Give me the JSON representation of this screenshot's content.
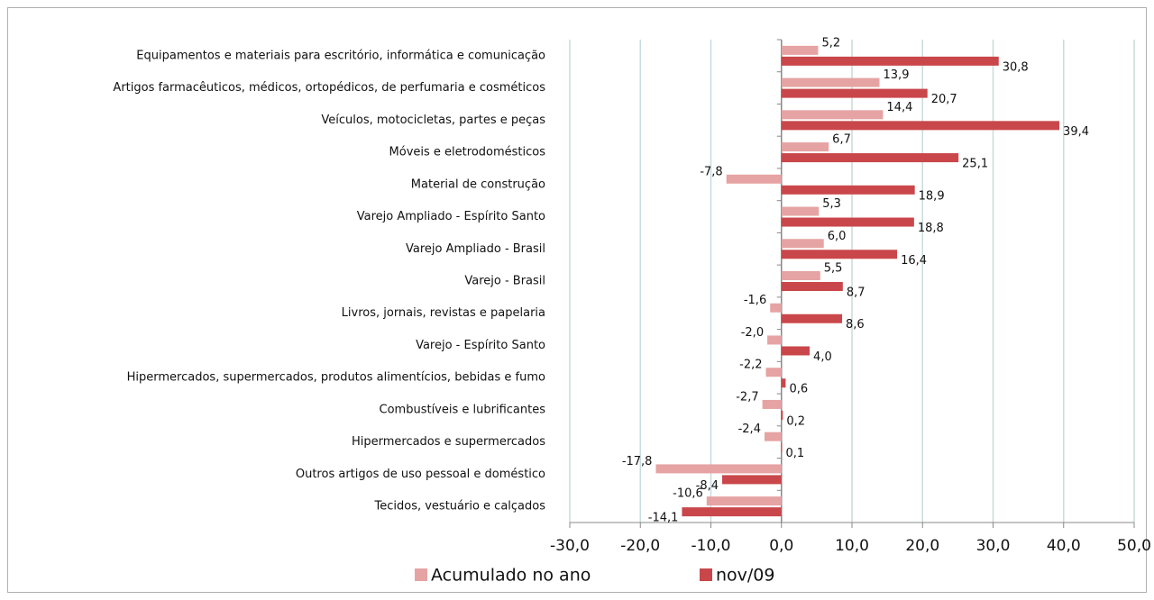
{
  "chart_data": {
    "type": "hbar",
    "categories": [
      "Equipamentos e materiais para escritório, informática e comunicação",
      "Artigos farmacêuticos, médicos, ortopédicos, de perfumaria e cosméticos",
      "Veículos, motocicletas, partes e peças",
      "Móveis e eletrodomésticos",
      "Material de construção",
      "Varejo Ampliado - Espírito Santo",
      "Varejo Ampliado - Brasil",
      "Varejo - Brasil",
      "Livros, jornais, revistas e papelaria",
      "Varejo - Espírito Santo",
      "Hipermercados, supermercados, produtos alimentícios, bebidas e fumo",
      "Combustíveis e lubrificantes",
      "Hipermercados e supermercados",
      "Outros artigos de uso pessoal e doméstico",
      "Tecidos, vestuário e calçados"
    ],
    "series": [
      {
        "name": "Acumulado no ano",
        "color": "#e6a3a3",
        "values": [
          5.2,
          13.9,
          14.4,
          6.7,
          -7.8,
          5.3,
          6.0,
          5.5,
          -1.6,
          -2.0,
          -2.2,
          -2.7,
          -2.4,
          -17.8,
          -10.6
        ],
        "value_labels": [
          "5,2",
          "13,9",
          "14,4",
          "6,7",
          "-7,8",
          "5,3",
          "6,0",
          "5,5",
          "-1,6",
          "-2,0",
          "-2,2",
          "-2,7",
          "-2,4",
          "-17,8",
          "-10,6"
        ]
      },
      {
        "name": "nov/09",
        "color": "#c9474a",
        "values": [
          30.8,
          20.7,
          39.4,
          25.1,
          18.9,
          18.8,
          16.4,
          8.7,
          8.6,
          4.0,
          0.6,
          0.2,
          0.1,
          -8.4,
          -14.1
        ],
        "value_labels": [
          "30,8",
          "20,7",
          "39,4",
          "25,1",
          "18,9",
          "18,8",
          "16,4",
          "8,7",
          "8,6",
          "4,0",
          "0,6",
          "0,2",
          "0,1",
          "-8,4",
          "-14,1"
        ]
      }
    ],
    "xlim": [
      -30,
      50
    ],
    "xticks": [
      {
        "value": -30,
        "label": "-30,0"
      },
      {
        "value": -20,
        "label": "-20,0"
      },
      {
        "value": -10,
        "label": "-10,0"
      },
      {
        "value": 0,
        "label": "0,0"
      },
      {
        "value": 10,
        "label": "10,0"
      },
      {
        "value": 20,
        "label": "20,0"
      },
      {
        "value": 30,
        "label": "30,0"
      },
      {
        "value": 40,
        "label": "40,0"
      },
      {
        "value": 50,
        "label": "50,0"
      }
    ],
    "grid": true,
    "legend": "bottom"
  }
}
